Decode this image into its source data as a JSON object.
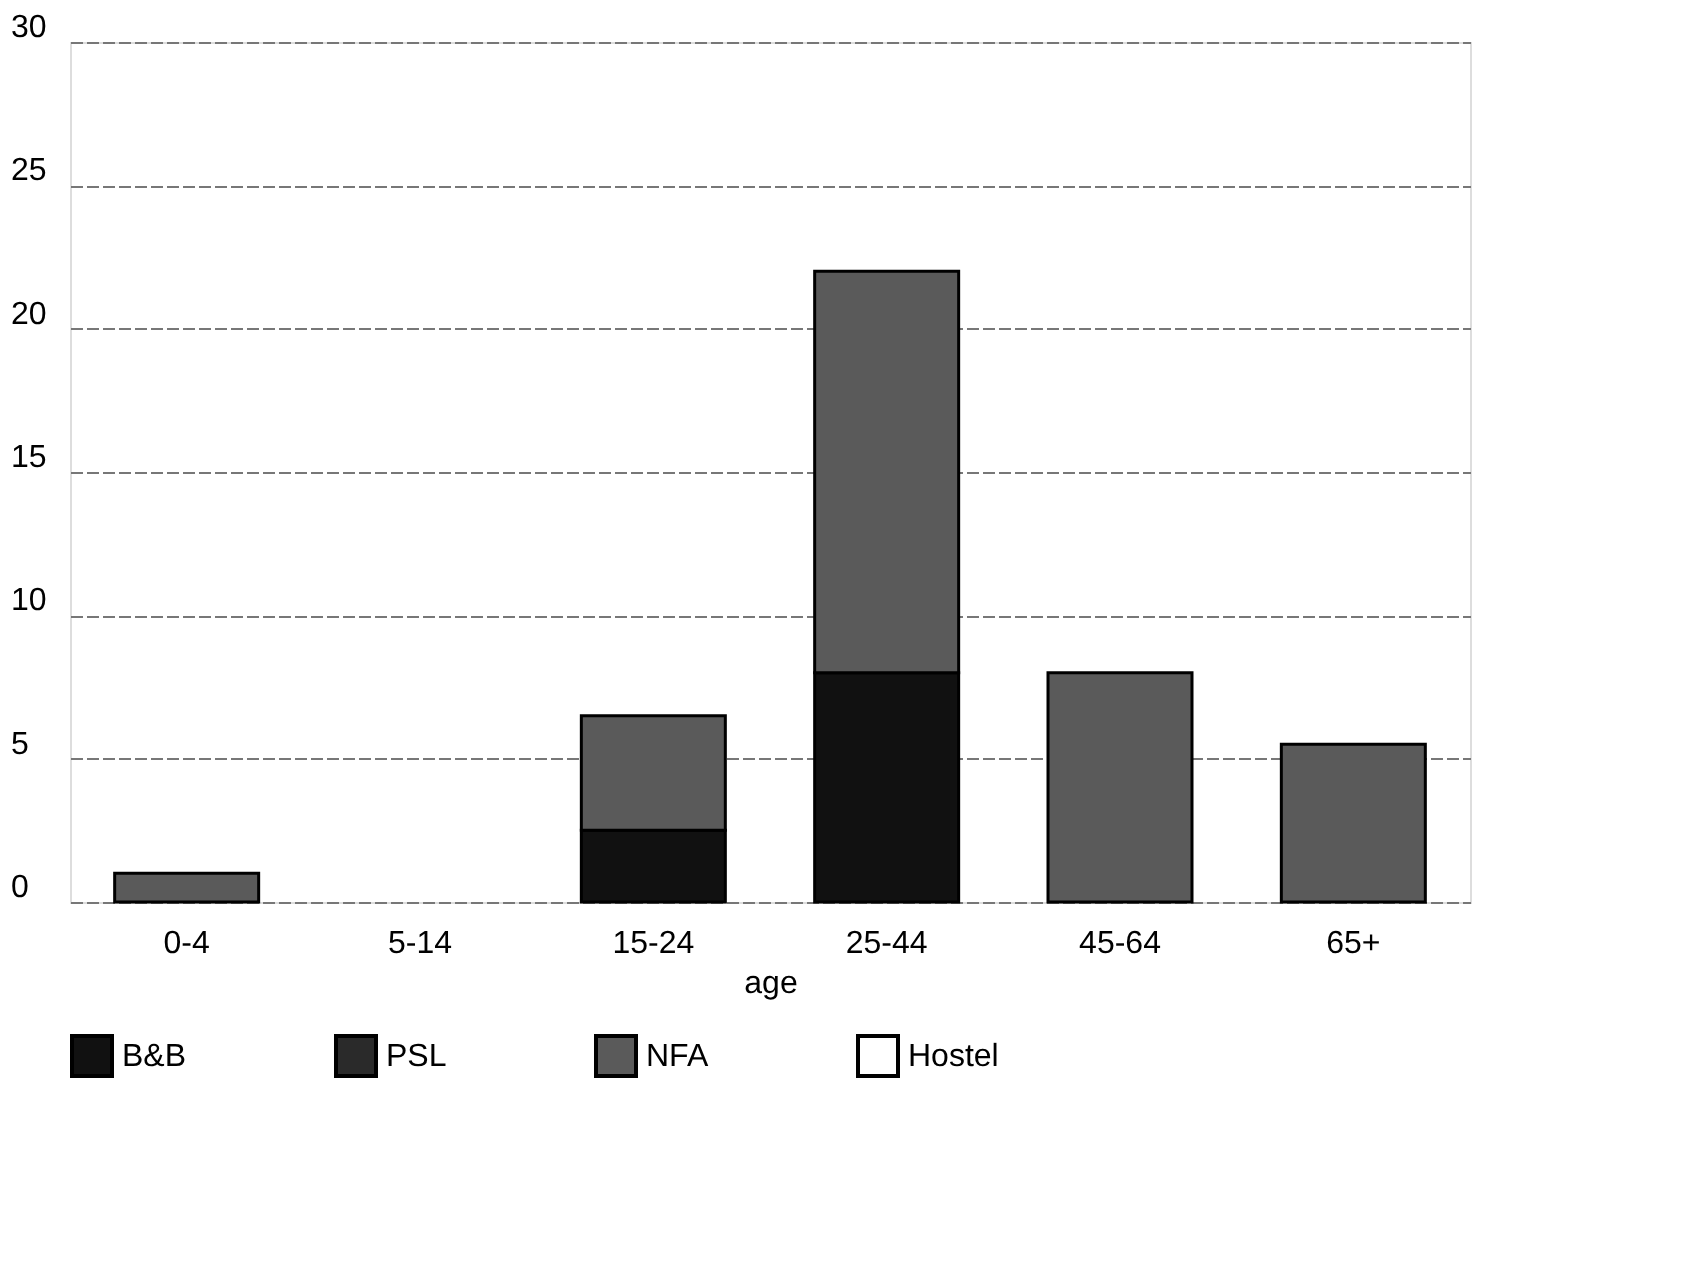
{
  "chart_data": {
    "type": "bar",
    "stacked": true,
    "xlabel": "age",
    "categories": [
      "0-4",
      "5-14",
      "15-24",
      "25-44",
      "45-64",
      "65+"
    ],
    "series": [
      {
        "name": "B&B",
        "color": "#111111",
        "values": [
          0,
          0,
          2.5,
          8,
          0,
          0
        ]
      },
      {
        "name": "PSL",
        "color": "#2a2a2a",
        "values": [
          0,
          0,
          0,
          0,
          0,
          0
        ]
      },
      {
        "name": "NFA",
        "color": "#5a5a5a",
        "values": [
          1,
          0,
          4,
          14,
          8,
          5.5
        ]
      },
      {
        "name": "Hostel",
        "color": "#ffffff",
        "values": [
          0,
          0,
          0,
          0,
          0,
          0
        ]
      }
    ],
    "ylim": [
      0,
      30
    ],
    "yticks": [
      0,
      5,
      10,
      15,
      20,
      25,
      30
    ],
    "grid": "y",
    "legend": "bottom"
  }
}
